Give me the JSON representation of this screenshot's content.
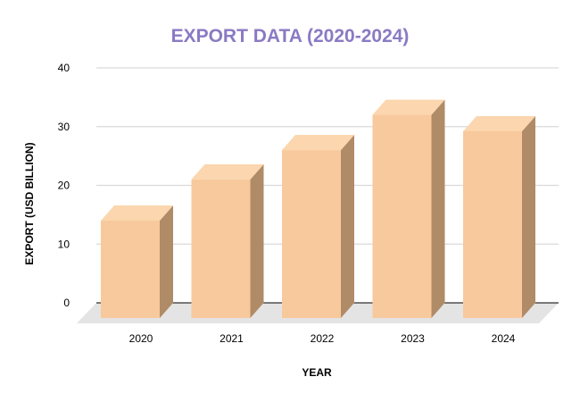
{
  "chart_data": {
    "type": "bar",
    "title": "EXPORT DATA (2020-2024)",
    "xlabel": "YEAR",
    "ylabel": "EXPORT (USD BILLION)",
    "categories": [
      "2020",
      "2021",
      "2022",
      "2023",
      "2024"
    ],
    "values": [
      14,
      21,
      26,
      32,
      29.2
    ],
    "ylim": [
      0,
      40
    ],
    "yticks": [
      0,
      10,
      20,
      30,
      40
    ],
    "grid": true,
    "legend": "none",
    "style": "3d",
    "colors": {
      "title": "#8A7AC4",
      "bar_front": "#F8C99C",
      "bar_top": "#FBD6AE",
      "bar_side": "#B08B68",
      "gridline": "#D9D9D9",
      "floor": "#E4E4E4"
    }
  }
}
